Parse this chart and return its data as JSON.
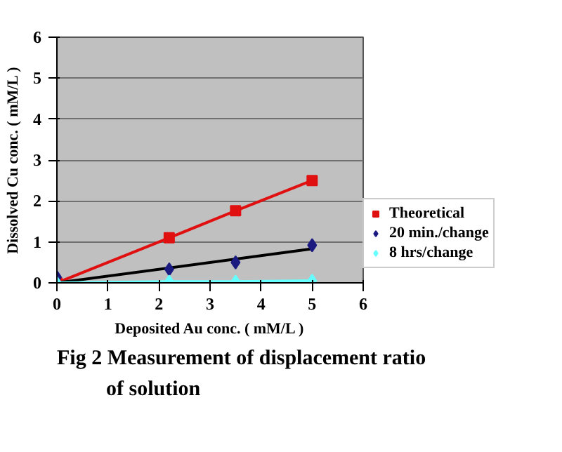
{
  "chart_data": {
    "type": "scatter",
    "title": "Fig 2  Measurement of displacement ratio\nof solution",
    "xlabel": "Deposited Au conc. ( mM/L )",
    "ylabel": "Dissolved Cu conc. ( mM/L )",
    "xlim": [
      0,
      6
    ],
    "ylim": [
      0,
      6
    ],
    "xticks": [
      0,
      1,
      2,
      3,
      4,
      5,
      6
    ],
    "yticks": [
      0,
      1,
      2,
      3,
      4,
      5,
      6
    ],
    "grid": "y",
    "legend": "right",
    "series": [
      {
        "name": "Theoretical",
        "type": "line",
        "color": "#e01010",
        "marker": "square",
        "x": [
          0,
          2.2,
          3.5,
          5
        ],
        "values": [
          0,
          1.1,
          1.76,
          2.5
        ]
      },
      {
        "type": "line",
        "color": "#000000",
        "marker": "none",
        "x": [
          0,
          5
        ],
        "values": [
          0,
          0.83
        ]
      },
      {
        "name": "20 min./change",
        "color": "#1a1a80",
        "marker": "diamond",
        "x": [
          0,
          2.2,
          3.5,
          5
        ],
        "values": [
          0.14,
          0.33,
          0.5,
          0.92
        ]
      },
      {
        "name": "8 hrs/change",
        "type": "line",
        "color": "#66ffff",
        "marker": "diamond",
        "x": [
          0,
          2.2,
          3.5,
          5
        ],
        "values": [
          0,
          0.03,
          0.03,
          0.05
        ]
      }
    ]
  }
}
